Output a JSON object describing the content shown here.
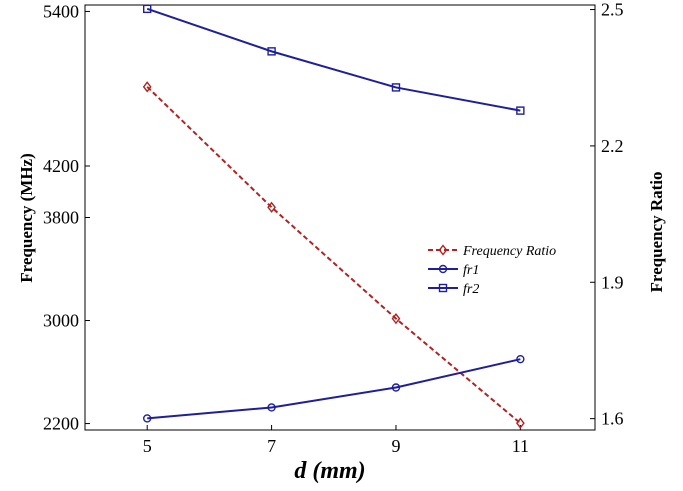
{
  "chart_data": {
    "type": "line",
    "xlabel": "d (mm)",
    "ylabel_left": "Frequency (MHz)",
    "ylabel_right": "Frequency Ratio",
    "x": [
      5,
      7,
      9,
      11
    ],
    "x_ticks": [
      "5",
      "7",
      "9",
      "11"
    ],
    "xlim": [
      4,
      12.2
    ],
    "ylim_left": [
      2150,
      5450
    ],
    "y_ticks_left": [
      "2200",
      "3000",
      "3800",
      "4200",
      "5400"
    ],
    "y_tick_values_left": [
      2200,
      3000,
      3800,
      4200,
      5400
    ],
    "ylim_right": [
      1.575,
      2.51
    ],
    "y_ticks_right": [
      "1.6",
      "1.9",
      "2.2",
      "2.5"
    ],
    "y_tick_values_right": [
      1.6,
      1.9,
      2.2,
      2.5
    ],
    "grid": false,
    "legend_position": "center-right",
    "series": [
      {
        "name": "Frequency Ratio",
        "axis": "right",
        "color": "#b22222",
        "marker": "diamond",
        "dashed": true,
        "values": [
          2.33,
          2.065,
          1.82,
          1.59
        ]
      },
      {
        "name": "fr1",
        "axis": "left",
        "color": "#1f1f99",
        "marker": "circle",
        "dashed": false,
        "values": [
          2240,
          2325,
          2480,
          2700
        ]
      },
      {
        "name": "fr2",
        "axis": "left",
        "color": "#1f1f99",
        "marker": "square",
        "dashed": false,
        "values": [
          5420,
          5090,
          4810,
          4630
        ]
      }
    ]
  }
}
